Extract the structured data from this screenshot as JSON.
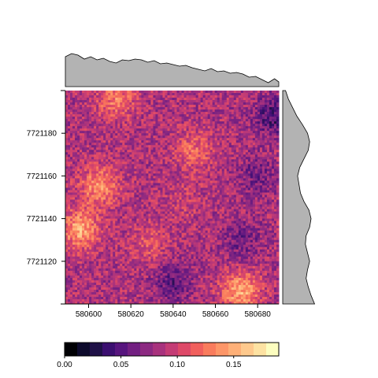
{
  "chart_data": [
    {
      "type": "heatmap",
      "title": "",
      "xlabel": "",
      "ylabel": "",
      "xlim": [
        580589,
        580690
      ],
      "ylim": [
        7721100,
        7721200
      ],
      "x_ticks": [
        580600,
        580620,
        580640,
        580660,
        580680
      ],
      "x_tick_labels": [
        "580600",
        "580620",
        "580640",
        "580660",
        "580680"
      ],
      "y_ticks": [
        7721120,
        7721140,
        7721160,
        7721180
      ],
      "y_tick_labels": [
        "7721120",
        "7721140",
        "7721160",
        "7721180"
      ],
      "grid": false,
      "value_range": [
        0.0,
        0.19
      ],
      "hotspots": [
        {
          "x": 580596,
          "y": 7721135,
          "value": 0.15
        },
        {
          "x": 580605,
          "y": 7721155,
          "value": 0.14
        },
        {
          "x": 580672,
          "y": 7721106,
          "value": 0.15
        },
        {
          "x": 580613,
          "y": 7721196,
          "value": 0.13
        },
        {
          "x": 580650,
          "y": 7721172,
          "value": 0.12
        },
        {
          "x": 580628,
          "y": 7721128,
          "value": 0.11
        },
        {
          "x": 580645,
          "y": 7721148,
          "value": 0.1
        },
        {
          "x": 580688,
          "y": 7721188,
          "value": 0.04
        },
        {
          "x": 580640,
          "y": 7721110,
          "value": 0.05
        },
        {
          "x": 580673,
          "y": 7721130,
          "value": 0.06
        },
        {
          "x": 580680,
          "y": 7721160,
          "value": 0.06
        }
      ],
      "baseline_value": 0.085
    },
    {
      "type": "area",
      "title": "",
      "orientation": "horizontal",
      "x": [
        580589,
        580592,
        580595,
        580598,
        580601,
        580604,
        580607,
        580610,
        580613,
        580616,
        580619,
        580622,
        580625,
        580628,
        580631,
        580634,
        580637,
        580640,
        580643,
        580646,
        580649,
        580652,
        580655,
        580658,
        580661,
        580664,
        580667,
        580670,
        580673,
        580676,
        580679,
        580682,
        580685,
        580688,
        580690
      ],
      "values": [
        0.108,
        0.112,
        0.11,
        0.105,
        0.108,
        0.104,
        0.106,
        0.102,
        0.1,
        0.104,
        0.103,
        0.105,
        0.104,
        0.101,
        0.103,
        0.099,
        0.1,
        0.098,
        0.096,
        0.097,
        0.094,
        0.092,
        0.09,
        0.093,
        0.089,
        0.09,
        0.087,
        0.088,
        0.086,
        0.082,
        0.083,
        0.079,
        0.075,
        0.08,
        0.076
      ],
      "ylim": [
        0.07,
        0.115
      ]
    },
    {
      "type": "area",
      "title": "",
      "orientation": "vertical",
      "y": [
        7721100,
        7721104,
        7721108,
        7721112,
        7721116,
        7721120,
        7721124,
        7721128,
        7721132,
        7721136,
        7721140,
        7721144,
        7721148,
        7721152,
        7721156,
        7721160,
        7721164,
        7721168,
        7721172,
        7721176,
        7721180,
        7721184,
        7721188,
        7721192,
        7721196,
        7721200
      ],
      "values": [
        0.115,
        0.11,
        0.106,
        0.103,
        0.105,
        0.108,
        0.105,
        0.102,
        0.103,
        0.108,
        0.11,
        0.107,
        0.1,
        0.095,
        0.093,
        0.091,
        0.094,
        0.1,
        0.106,
        0.108,
        0.105,
        0.098,
        0.09,
        0.084,
        0.078,
        0.074
      ],
      "xlim": [
        0.07,
        0.12
      ]
    }
  ],
  "colorbar": {
    "colors": [
      "#000004",
      "#0d0a2c",
      "#1f1147",
      "#3b0f70",
      "#57157e",
      "#721f81",
      "#8c2981",
      "#a8327d",
      "#c43c75",
      "#de4968",
      "#f1605d",
      "#f97c5d",
      "#fd9668",
      "#feb078",
      "#fec98d",
      "#fde2a2",
      "#fcfdbf"
    ],
    "ticks": [
      0.0,
      0.05,
      0.1,
      0.15
    ],
    "tick_labels": [
      "0.00",
      "0.05",
      "0.10",
      "0.15"
    ],
    "range": [
      0.0,
      0.19
    ]
  },
  "colors": {
    "marginal_fill": "#b3b3b3",
    "marginal_stroke": "#000000",
    "axis": "#000000"
  }
}
